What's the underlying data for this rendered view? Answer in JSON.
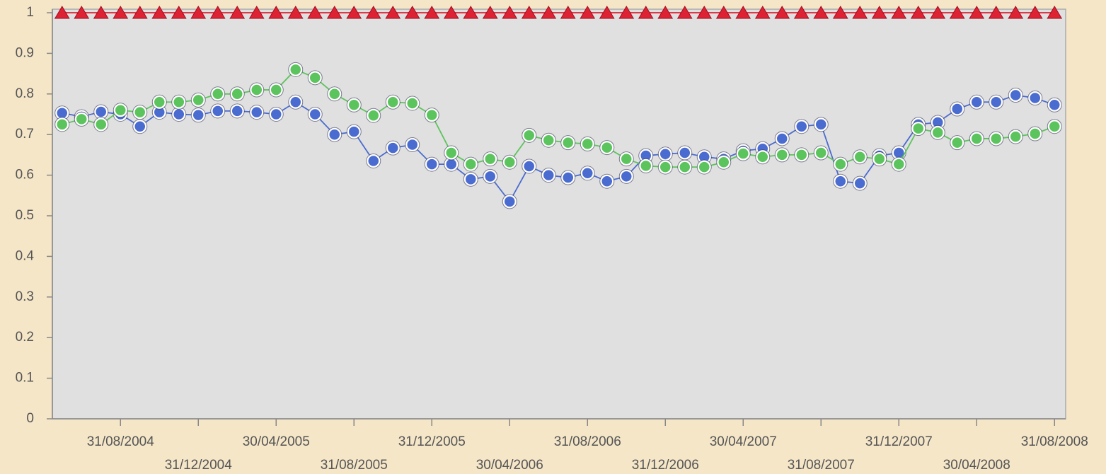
{
  "chart_data": {
    "type": "line",
    "categories": [
      null,
      null,
      null,
      "31/08/2004",
      null,
      null,
      null,
      "31/12/2004",
      null,
      null,
      null,
      "30/04/2005",
      null,
      null,
      null,
      "31/08/2005",
      null,
      null,
      null,
      "31/12/2005",
      null,
      null,
      null,
      "30/04/2006",
      null,
      null,
      null,
      "31/08/2006",
      null,
      null,
      null,
      "31/12/2006",
      null,
      null,
      null,
      "30/04/2007",
      null,
      null,
      null,
      "31/08/2007",
      null,
      null,
      null,
      "31/12/2007",
      null,
      null,
      null,
      "30/04/2008",
      null,
      null,
      null,
      "31/08/2008"
    ],
    "series": [
      {
        "color": "#dd2233",
        "marker": "triangle",
        "values": [
          1,
          1,
          1,
          1,
          1,
          1,
          1,
          1,
          1,
          1,
          1,
          1,
          1,
          1,
          1,
          1,
          1,
          1,
          1,
          1,
          1,
          1,
          1,
          1,
          1,
          1,
          1,
          1,
          1,
          1,
          1,
          1,
          1,
          1,
          1,
          1,
          1,
          1,
          1,
          1,
          1,
          1,
          1,
          1,
          1,
          1,
          1,
          1,
          1,
          1,
          1,
          1
        ]
      },
      {
        "color": "#4a6bd0",
        "marker": "circle",
        "values": [
          0.753,
          0.744,
          0.756,
          0.75,
          0.72,
          0.755,
          0.75,
          0.748,
          0.758,
          0.758,
          0.755,
          0.75,
          0.78,
          0.75,
          0.7,
          0.707,
          0.635,
          0.667,
          0.675,
          0.627,
          0.627,
          0.59,
          0.597,
          0.535,
          0.622,
          0.6,
          0.594,
          0.605,
          0.585,
          0.597,
          0.648,
          0.652,
          0.655,
          0.645,
          0.64,
          0.66,
          0.665,
          0.69,
          0.72,
          0.725,
          0.585,
          0.58,
          0.648,
          0.655,
          0.725,
          0.73,
          0.763,
          0.78,
          0.78,
          0.797,
          0.79,
          0.773
        ]
      },
      {
        "color": "#5cc45c",
        "marker": "circle",
        "values": [
          0.725,
          0.738,
          0.725,
          0.76,
          0.755,
          0.78,
          0.78,
          0.785,
          0.8,
          0.8,
          0.81,
          0.81,
          0.86,
          0.84,
          0.8,
          0.773,
          0.747,
          0.78,
          0.777,
          0.748,
          0.655,
          0.627,
          0.64,
          0.632,
          0.698,
          0.686,
          0.68,
          0.677,
          0.668,
          0.64,
          0.623,
          0.62,
          0.62,
          0.62,
          0.632,
          0.653,
          0.645,
          0.65,
          0.65,
          0.655,
          0.627,
          0.645,
          0.64,
          0.627,
          0.715,
          0.705,
          0.68,
          0.69,
          0.69,
          0.695,
          0.702,
          0.72
        ]
      }
    ],
    "ylim": [
      0,
      1
    ],
    "yticks": [
      0,
      0.1,
      0.2,
      0.3,
      0.4,
      0.5,
      0.6,
      0.7,
      0.8,
      0.9,
      1
    ],
    "grid": false
  }
}
